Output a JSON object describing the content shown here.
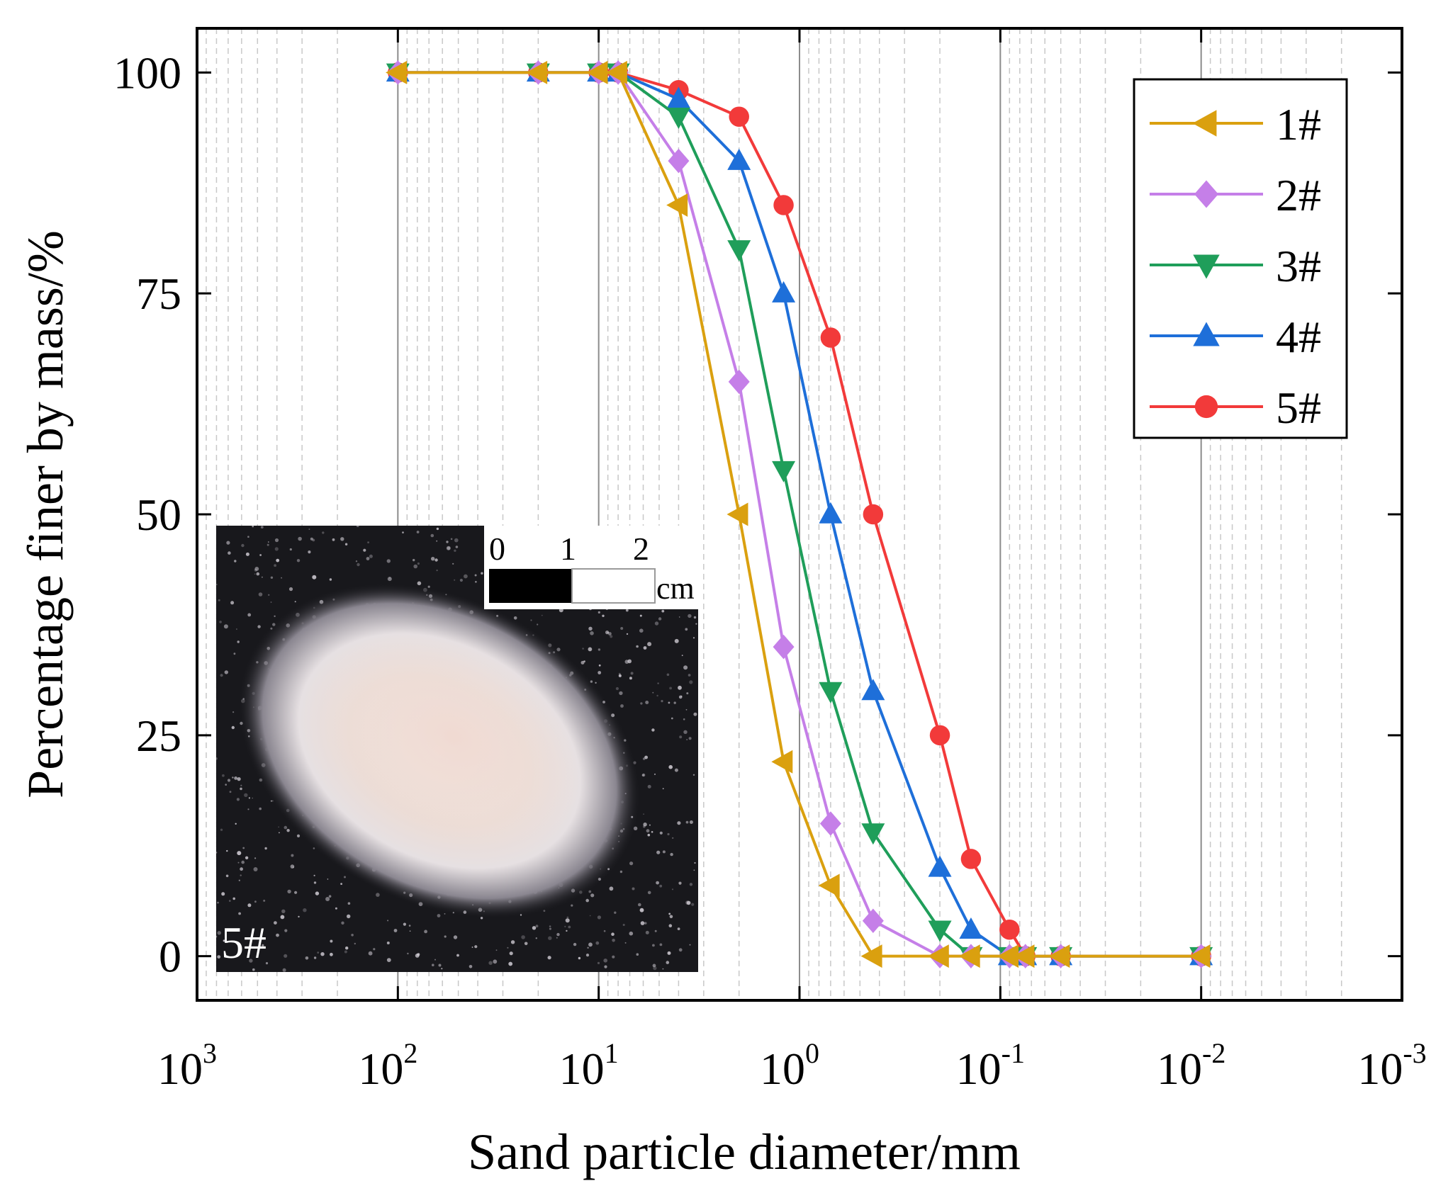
{
  "chart_data": {
    "type": "line",
    "title": "",
    "xlabel": "Sand particle diameter/mm",
    "ylabel": "Percentage finer by mass/%",
    "x_scale": "log",
    "x_reversed": true,
    "xlim": [
      1000,
      0.001
    ],
    "ylim": [
      -5,
      105
    ],
    "x_ticks": [
      {
        "value": 1000,
        "base": "10",
        "exp": "3"
      },
      {
        "value": 100,
        "base": "10",
        "exp": "2"
      },
      {
        "value": 10,
        "base": "10",
        "exp": "1"
      },
      {
        "value": 1,
        "base": "10",
        "exp": "0"
      },
      {
        "value": 0.1,
        "base": "10",
        "exp": "-1"
      },
      {
        "value": 0.01,
        "base": "10",
        "exp": "-2"
      },
      {
        "value": 0.001,
        "base": "10",
        "exp": "-3"
      }
    ],
    "y_ticks": [
      {
        "value": 0,
        "label": "0"
      },
      {
        "value": 25,
        "label": "25"
      },
      {
        "value": 50,
        "label": "50"
      },
      {
        "value": 75,
        "label": "75"
      },
      {
        "value": 100,
        "label": "100"
      }
    ],
    "grid": true,
    "legend_position": "top-right",
    "series": [
      {
        "name": "1#",
        "color": "#DAA00F",
        "marker": "triangle-left",
        "x": [
          100,
          20,
          10,
          8,
          4,
          2,
          1.2,
          0.7,
          0.43,
          0.2,
          0.14,
          0.09,
          0.075,
          0.05,
          0.01
        ],
        "y": [
          100,
          100,
          100,
          100,
          85,
          50,
          22,
          8,
          0,
          0,
          0,
          0,
          0,
          0,
          0
        ]
      },
      {
        "name": "2#",
        "color": "#C57FE8",
        "marker": "diamond",
        "x": [
          100,
          20,
          10,
          8,
          4,
          2,
          1.2,
          0.7,
          0.43,
          0.2,
          0.14,
          0.09,
          0.075,
          0.05,
          0.01
        ],
        "y": [
          100,
          100,
          100,
          100,
          90,
          65,
          35,
          15,
          4,
          0,
          0,
          0,
          0,
          0,
          0
        ]
      },
      {
        "name": "3#",
        "color": "#1F9E5A",
        "marker": "triangle-down",
        "x": [
          100,
          20,
          10,
          8,
          4,
          2,
          1.2,
          0.7,
          0.43,
          0.2,
          0.14,
          0.09,
          0.075,
          0.05,
          0.01
        ],
        "y": [
          100,
          100,
          100,
          100,
          95,
          80,
          55,
          30,
          14,
          3,
          0,
          0,
          0,
          0,
          0
        ]
      },
      {
        "name": "4#",
        "color": "#1E6FD9",
        "marker": "triangle-up",
        "x": [
          100,
          20,
          10,
          8,
          4,
          2,
          1.2,
          0.7,
          0.43,
          0.2,
          0.14,
          0.09,
          0.075,
          0.05,
          0.01
        ],
        "y": [
          100,
          100,
          100,
          100,
          97,
          90,
          75,
          50,
          30,
          10,
          3,
          0,
          0,
          0,
          0
        ]
      },
      {
        "name": "5#",
        "color": "#F23A3A",
        "marker": "circle",
        "x": [
          100,
          20,
          10,
          8,
          4,
          2,
          1.2,
          0.7,
          0.43,
          0.2,
          0.14,
          0.09,
          0.075,
          0.05,
          0.01
        ],
        "y": [
          100,
          100,
          100,
          100,
          98,
          95,
          85,
          70,
          50,
          25,
          11,
          3,
          0,
          0,
          0
        ]
      }
    ],
    "inset": {
      "label": "5#",
      "scale_bar": {
        "ticks": [
          "0",
          "1",
          "2"
        ],
        "unit": "cm"
      }
    }
  }
}
